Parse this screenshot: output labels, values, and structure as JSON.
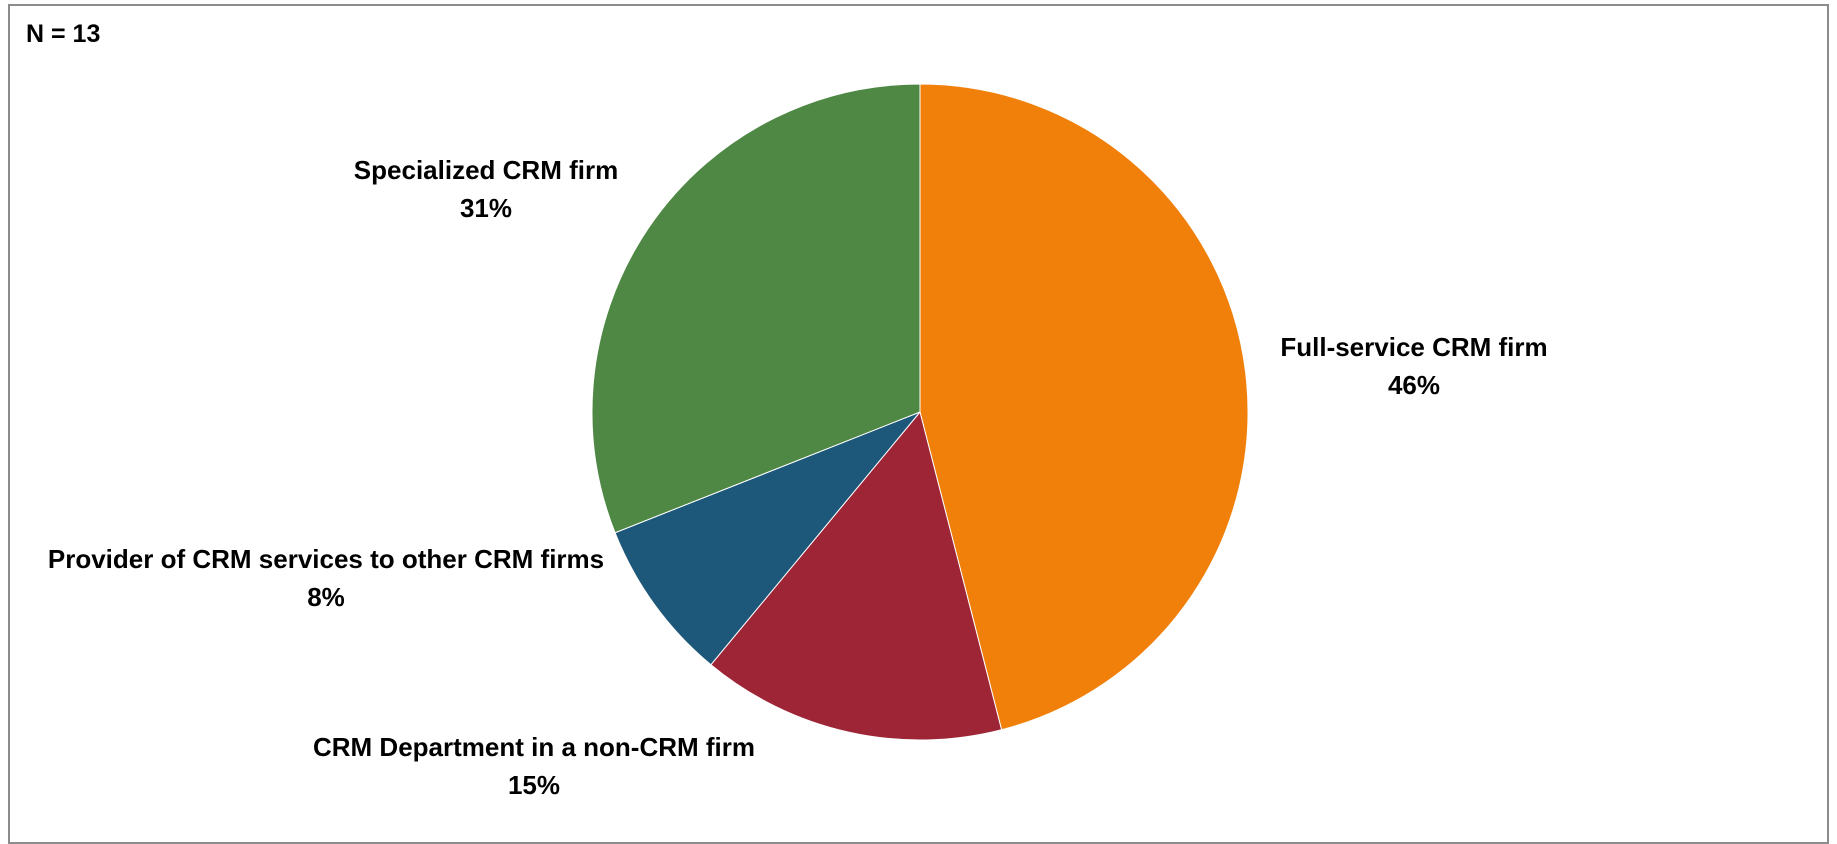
{
  "chart_data": {
    "type": "pie",
    "annotation": "N = 13",
    "start_angle_deg": 0,
    "direction": "clockwise",
    "slices": [
      {
        "label": "Full-service CRM firm",
        "value": 46,
        "display": "46%",
        "color": "#F0800A"
      },
      {
        "label": "CRM Department in a non-CRM firm",
        "value": 15,
        "display": "15%",
        "color": "#9E2536"
      },
      {
        "label": "Provider of CRM services to other CRM firms",
        "value": 8,
        "display": "8%",
        "color": "#1D587A"
      },
      {
        "label": "Specialized CRM firm",
        "value": 31,
        "display": "31%",
        "color": "#4F8744"
      }
    ],
    "legend": "none",
    "grid": false
  }
}
